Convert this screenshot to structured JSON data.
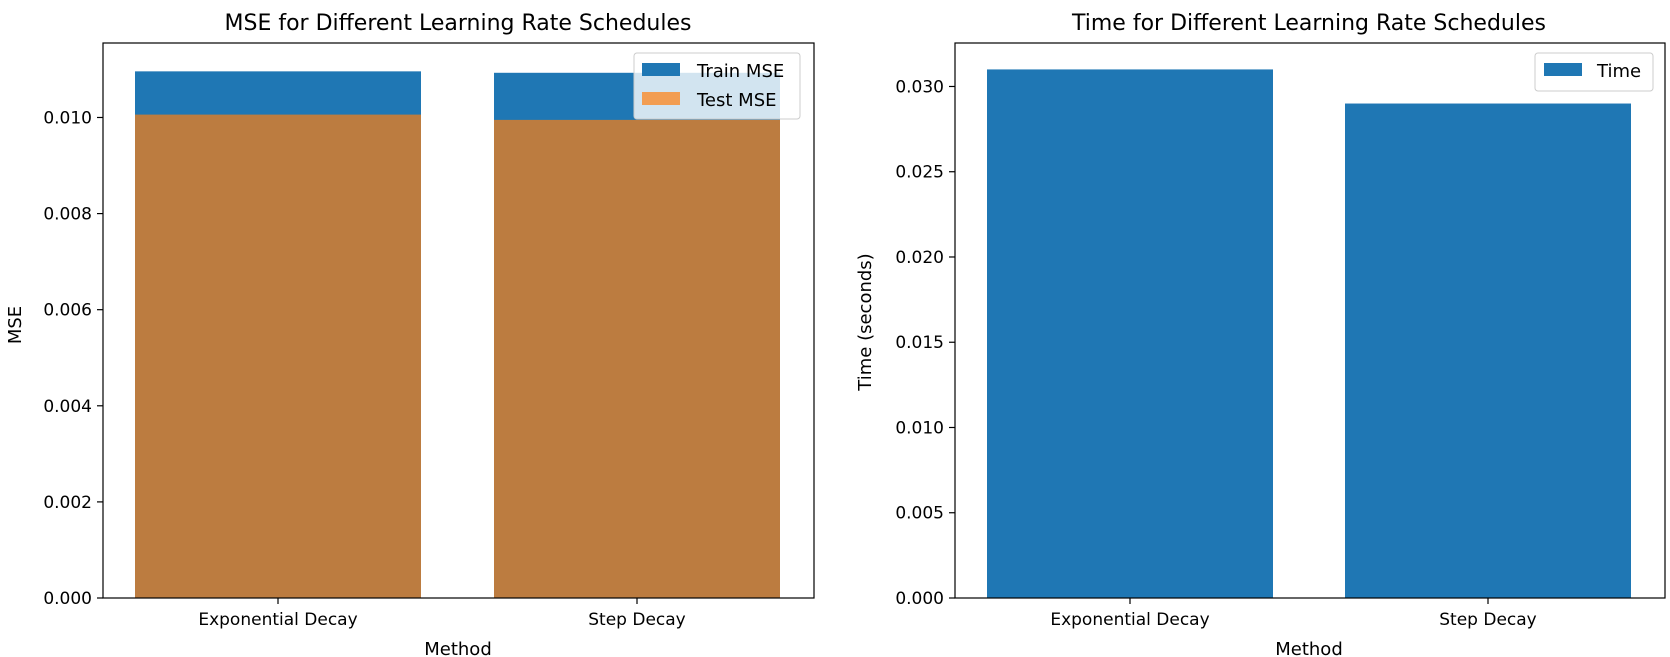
{
  "chart_data": [
    {
      "type": "bar",
      "title": "MSE for Different Learning Rate Schedules",
      "xlabel": "Method",
      "ylabel": "MSE",
      "categories": [
        "Exponential Decay",
        "Step Decay"
      ],
      "series": [
        {
          "name": "Train MSE",
          "values": [
            0.01096,
            0.01093
          ],
          "color": "#1f77b4"
        },
        {
          "name": "Test MSE",
          "values": [
            0.01006,
            0.00995
          ],
          "color": "#ff7f0e",
          "opacity": 0.7
        }
      ],
      "ylim": [
        0,
        0.01155
      ],
      "yticks": [
        "0.000",
        "0.002",
        "0.004",
        "0.006",
        "0.008",
        "0.010"
      ],
      "legend": "top-right",
      "grid": false
    },
    {
      "type": "bar",
      "title": "Time for Different Learning Rate Schedules",
      "xlabel": "Method",
      "ylabel": "Time (seconds)",
      "categories": [
        "Exponential Decay",
        "Step Decay"
      ],
      "series": [
        {
          "name": "Time",
          "values": [
            0.031,
            0.029
          ],
          "color": "#1f77b4"
        }
      ],
      "ylim": [
        0,
        0.03255
      ],
      "yticks": [
        "0.000",
        "0.005",
        "0.010",
        "0.015",
        "0.020",
        "0.025",
        "0.030"
      ],
      "legend": "top-right",
      "grid": false
    }
  ]
}
